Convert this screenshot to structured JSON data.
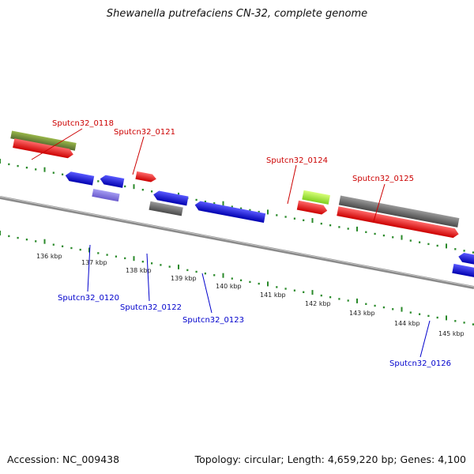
{
  "title": "Shewanella putrefaciens CN-32, complete genome",
  "footer": {
    "accession": "Accession: NC_009438",
    "topology": "Topology: circular; Length: 4,659,220 bp; Genes: 4,100"
  },
  "colors": {
    "forward_label": "#cc0000",
    "reverse_label": "#0000cc",
    "tick": "#2a8a2a",
    "backbone": "#888888"
  },
  "axis_labels": [
    "136 kbp",
    "137 kbp",
    "138 kbp",
    "139 kbp",
    "140 kbp",
    "141 kbp",
    "142 kbp",
    "143 kbp",
    "144 kbp",
    "145 kbp"
  ],
  "gene_labels": [
    {
      "text": "Sputcn32_0118",
      "strand": "forward"
    },
    {
      "text": "Sputcn32_0121",
      "strand": "forward"
    },
    {
      "text": "Sputcn32_0124",
      "strand": "forward"
    },
    {
      "text": "Sputcn32_0125",
      "strand": "forward"
    },
    {
      "text": "Sputcn32_0120",
      "strand": "reverse"
    },
    {
      "text": "Sputcn32_0122",
      "strand": "reverse"
    },
    {
      "text": "Sputcn32_0123",
      "strand": "reverse"
    },
    {
      "text": "Sputcn32_0126",
      "strand": "reverse"
    }
  ],
  "features": [
    {
      "name": "olive-gene",
      "color": "#6b8e23"
    },
    {
      "name": "red-gene",
      "color": "#ff0000"
    },
    {
      "name": "blue-gene",
      "color": "#0000ff"
    },
    {
      "name": "lavender-gene",
      "color": "#7b68ee"
    },
    {
      "name": "grey-gene",
      "color": "#666666"
    },
    {
      "name": "lime-gene",
      "color": "#adff2f"
    },
    {
      "name": "green-gene",
      "color": "#2e8b2e"
    }
  ]
}
